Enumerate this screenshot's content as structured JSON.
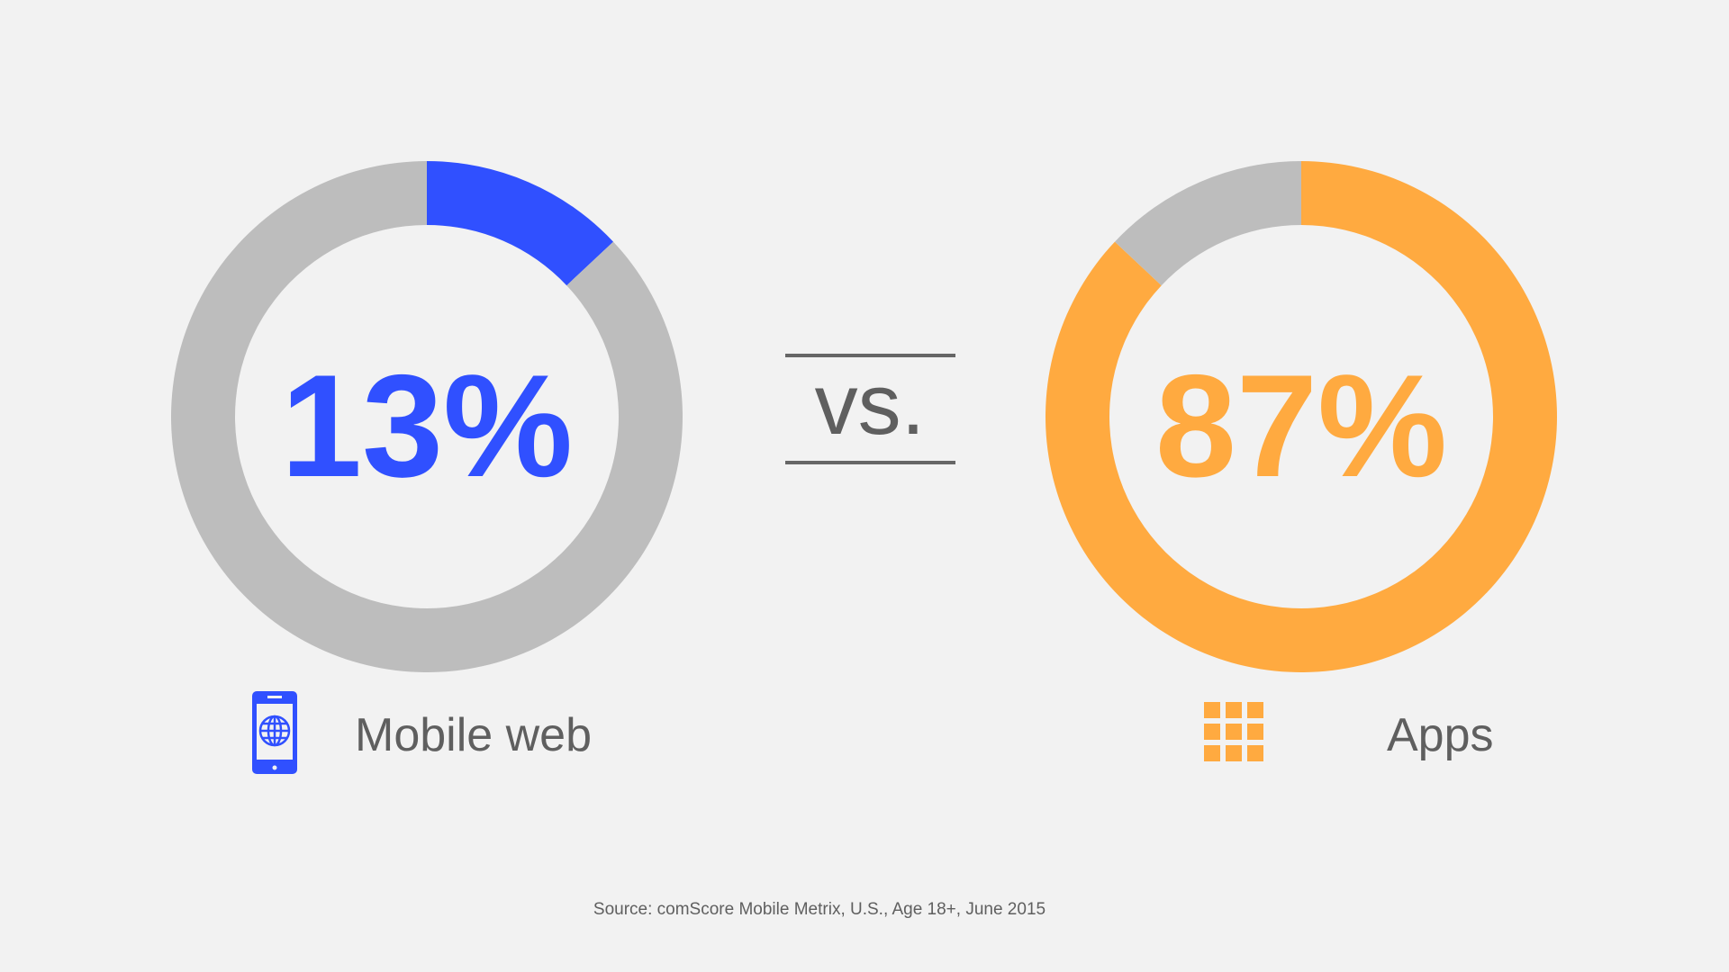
{
  "chart_data": [
    {
      "type": "pie",
      "variant": "donut",
      "center_label": "13%",
      "category_label": "Mobile web",
      "icon": "mobile-globe-icon",
      "values": [
        13,
        87
      ],
      "colors": [
        "#3050FF",
        "#BDBDBD"
      ]
    },
    {
      "type": "pie",
      "variant": "donut",
      "center_label": "87%",
      "category_label": "Apps",
      "icon": "app-grid-icon",
      "values": [
        87,
        13
      ],
      "colors": [
        "#FFAA40",
        "#BDBDBD"
      ]
    }
  ],
  "separator": "vs.",
  "source": "Source: comScore Mobile Metrix, U.S., Age 18+, June 2015",
  "colors": {
    "background": "#F2F2F2",
    "text": "#5F5F5F",
    "web": "#3050FF",
    "apps": "#FFAA40",
    "remainder": "#BDBDBD"
  }
}
